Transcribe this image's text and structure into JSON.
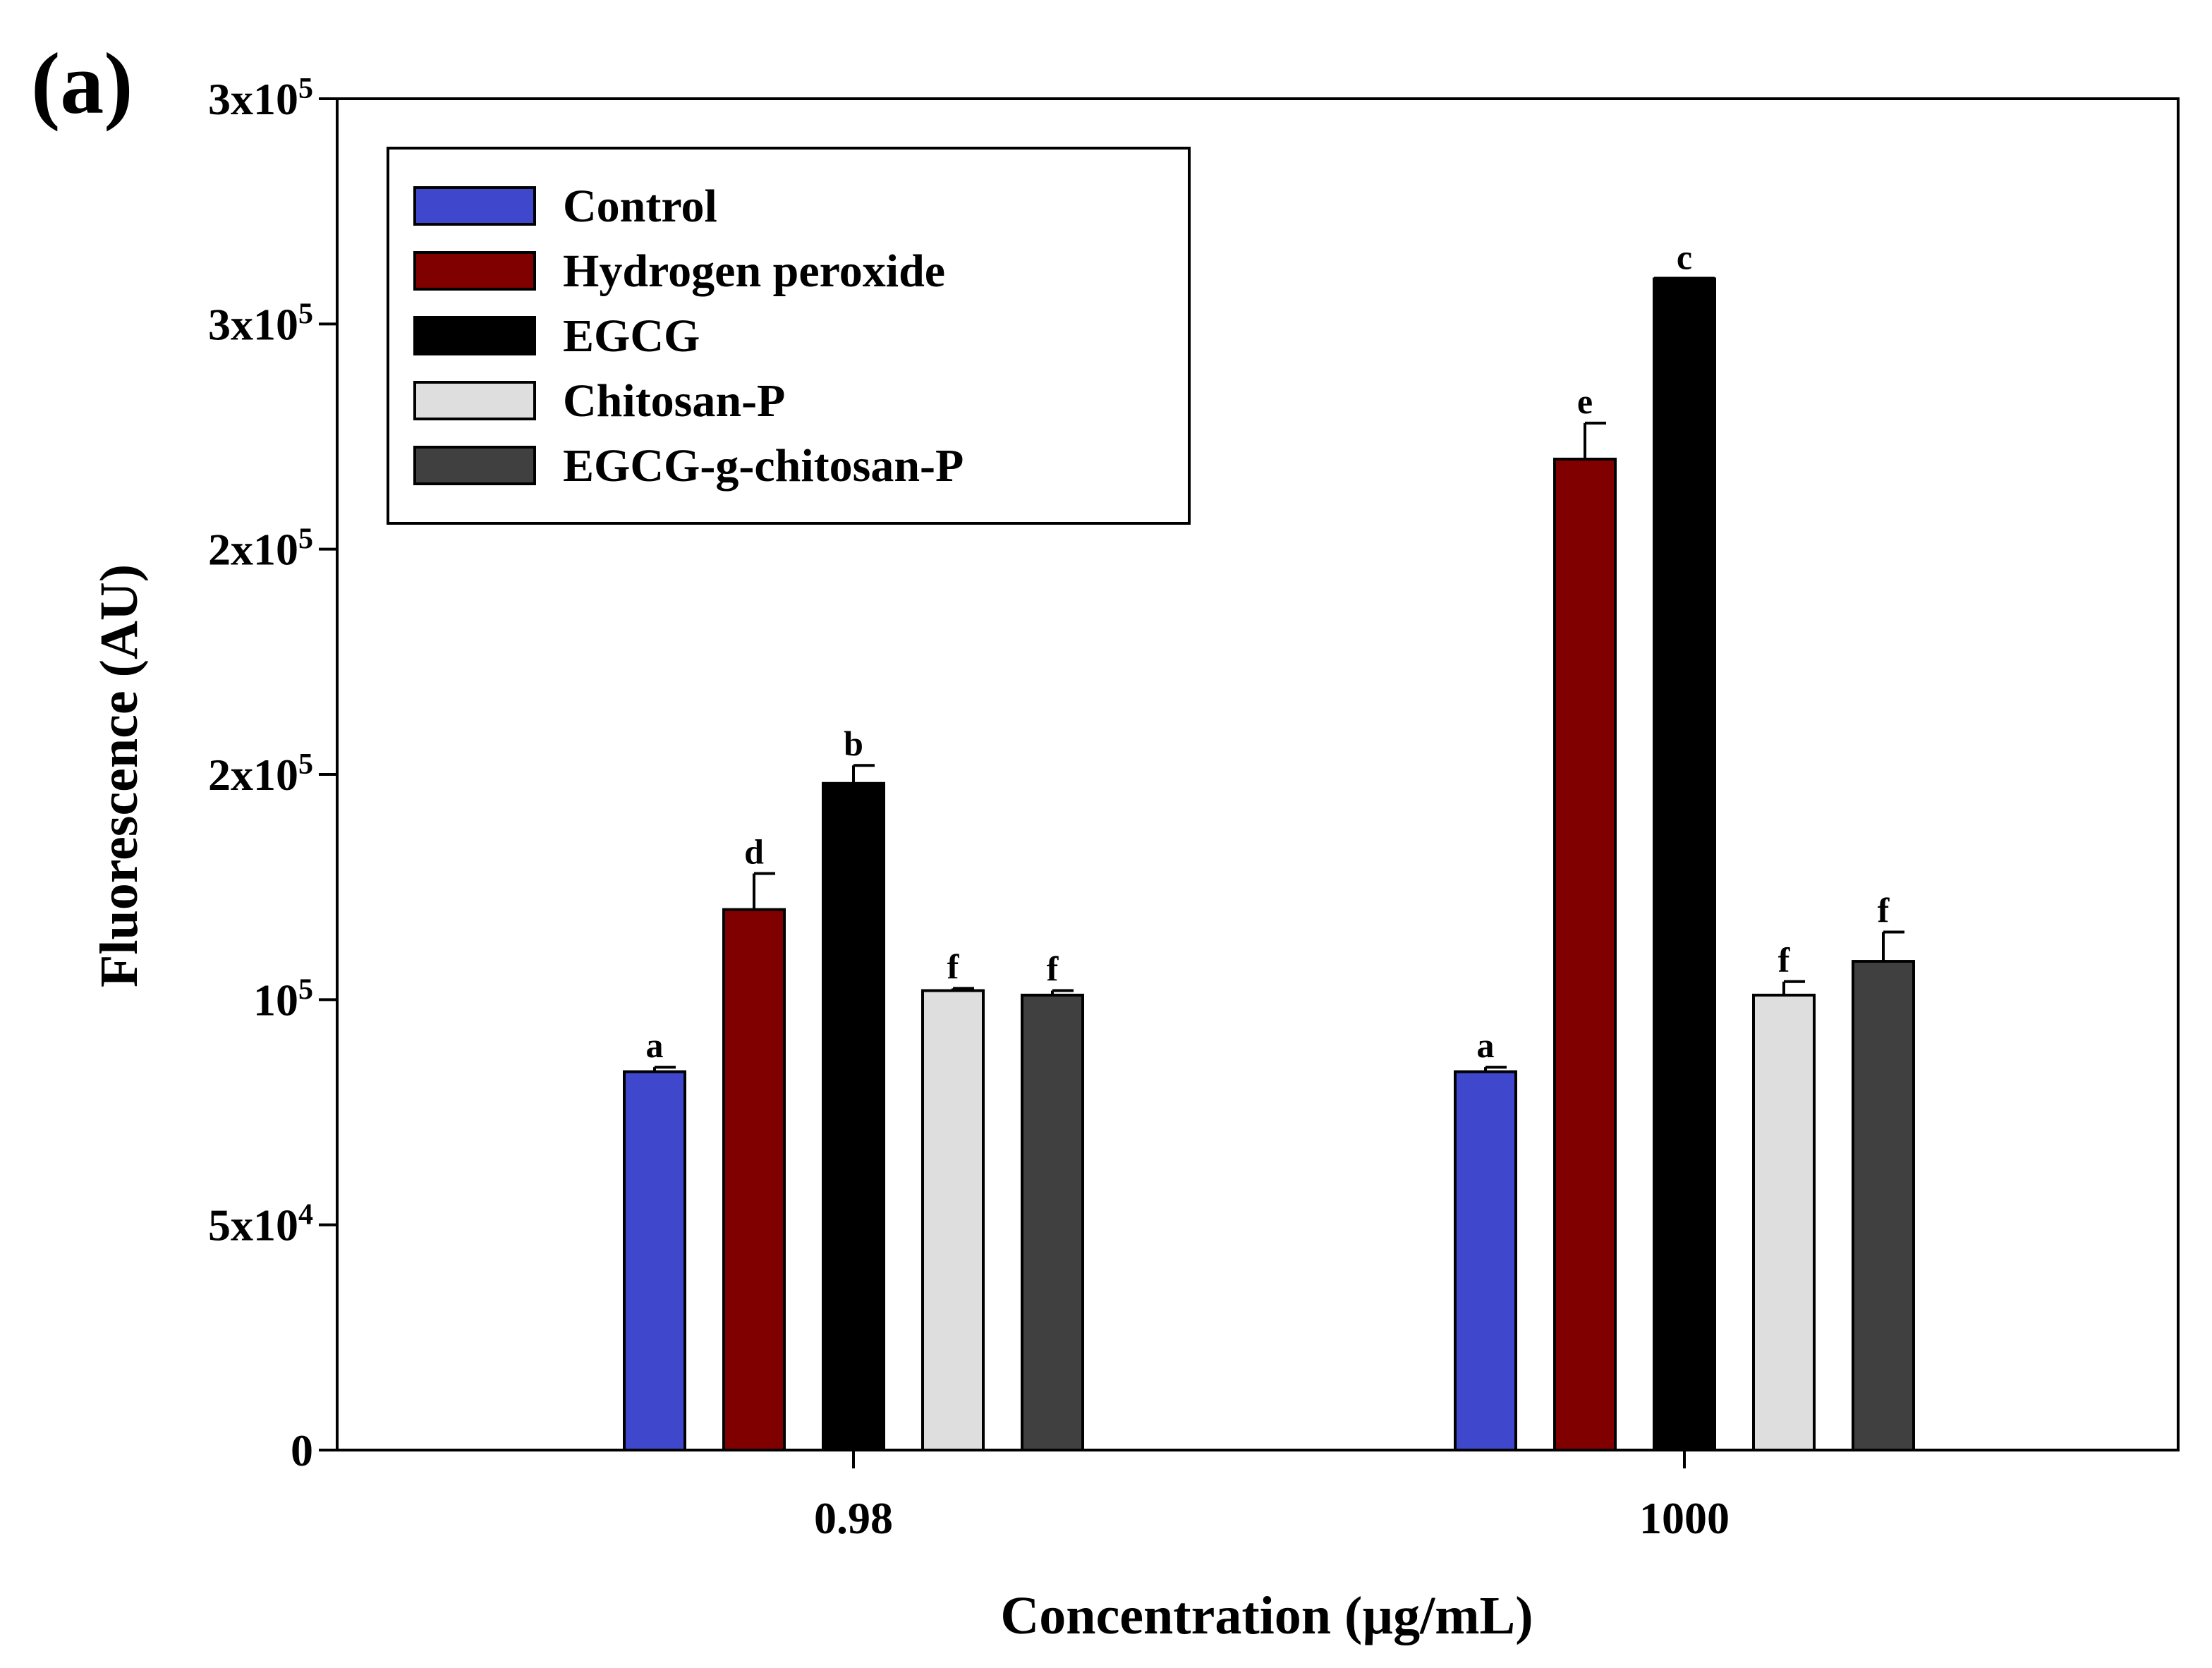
{
  "panel_label": "(a)",
  "chart_data": {
    "type": "bar",
    "title": "",
    "xlabel": "Concentration (µg/mL)",
    "ylabel": "Fluorescence (AU)",
    "ylim": [
      0,
      300000
    ],
    "categories": [
      "0.98",
      "1000"
    ],
    "y_ticks": [
      {
        "value": 0,
        "mantissa": "0",
        "exponent": ""
      },
      {
        "value": 50000,
        "mantissa": "5x10",
        "exponent": "4"
      },
      {
        "value": 100000,
        "mantissa": "10",
        "exponent": "5"
      },
      {
        "value": 150000,
        "mantissa": "2x10",
        "exponent": "5"
      },
      {
        "value": 200000,
        "mantissa": "2x10",
        "exponent": "5"
      },
      {
        "value": 250000,
        "mantissa": "3x10",
        "exponent": "5"
      },
      {
        "value": 300000,
        "mantissa": "3x10",
        "exponent": "5"
      }
    ],
    "series": [
      {
        "name": "Control",
        "color": "#3f48cc",
        "values": [
          84000,
          84000
        ],
        "errors": [
          1000,
          1000
        ],
        "labels": [
          "a",
          "a"
        ]
      },
      {
        "name": "Hydrogen peroxide",
        "color": "#800000",
        "values": [
          120000,
          220000
        ],
        "errors": [
          8000,
          8000
        ],
        "labels": [
          "d",
          "e"
        ]
      },
      {
        "name": "EGCG",
        "color": "#000000",
        "values": [
          148000,
          260000
        ],
        "errors": [
          4000,
          0
        ],
        "labels": [
          "b",
          "c"
        ]
      },
      {
        "name": "Chitosan-P",
        "color": "#dedede",
        "values": [
          102000,
          101000
        ],
        "errors": [
          500,
          3000
        ],
        "labels": [
          "f",
          "f"
        ]
      },
      {
        "name": "EGCG-g-chitosan-P",
        "color": "#404040",
        "values": [
          101000,
          108500
        ],
        "errors": [
          1000,
          6500
        ],
        "labels": [
          "f",
          "f"
        ]
      }
    ],
    "legend_position": "top-left",
    "grid": false
  }
}
